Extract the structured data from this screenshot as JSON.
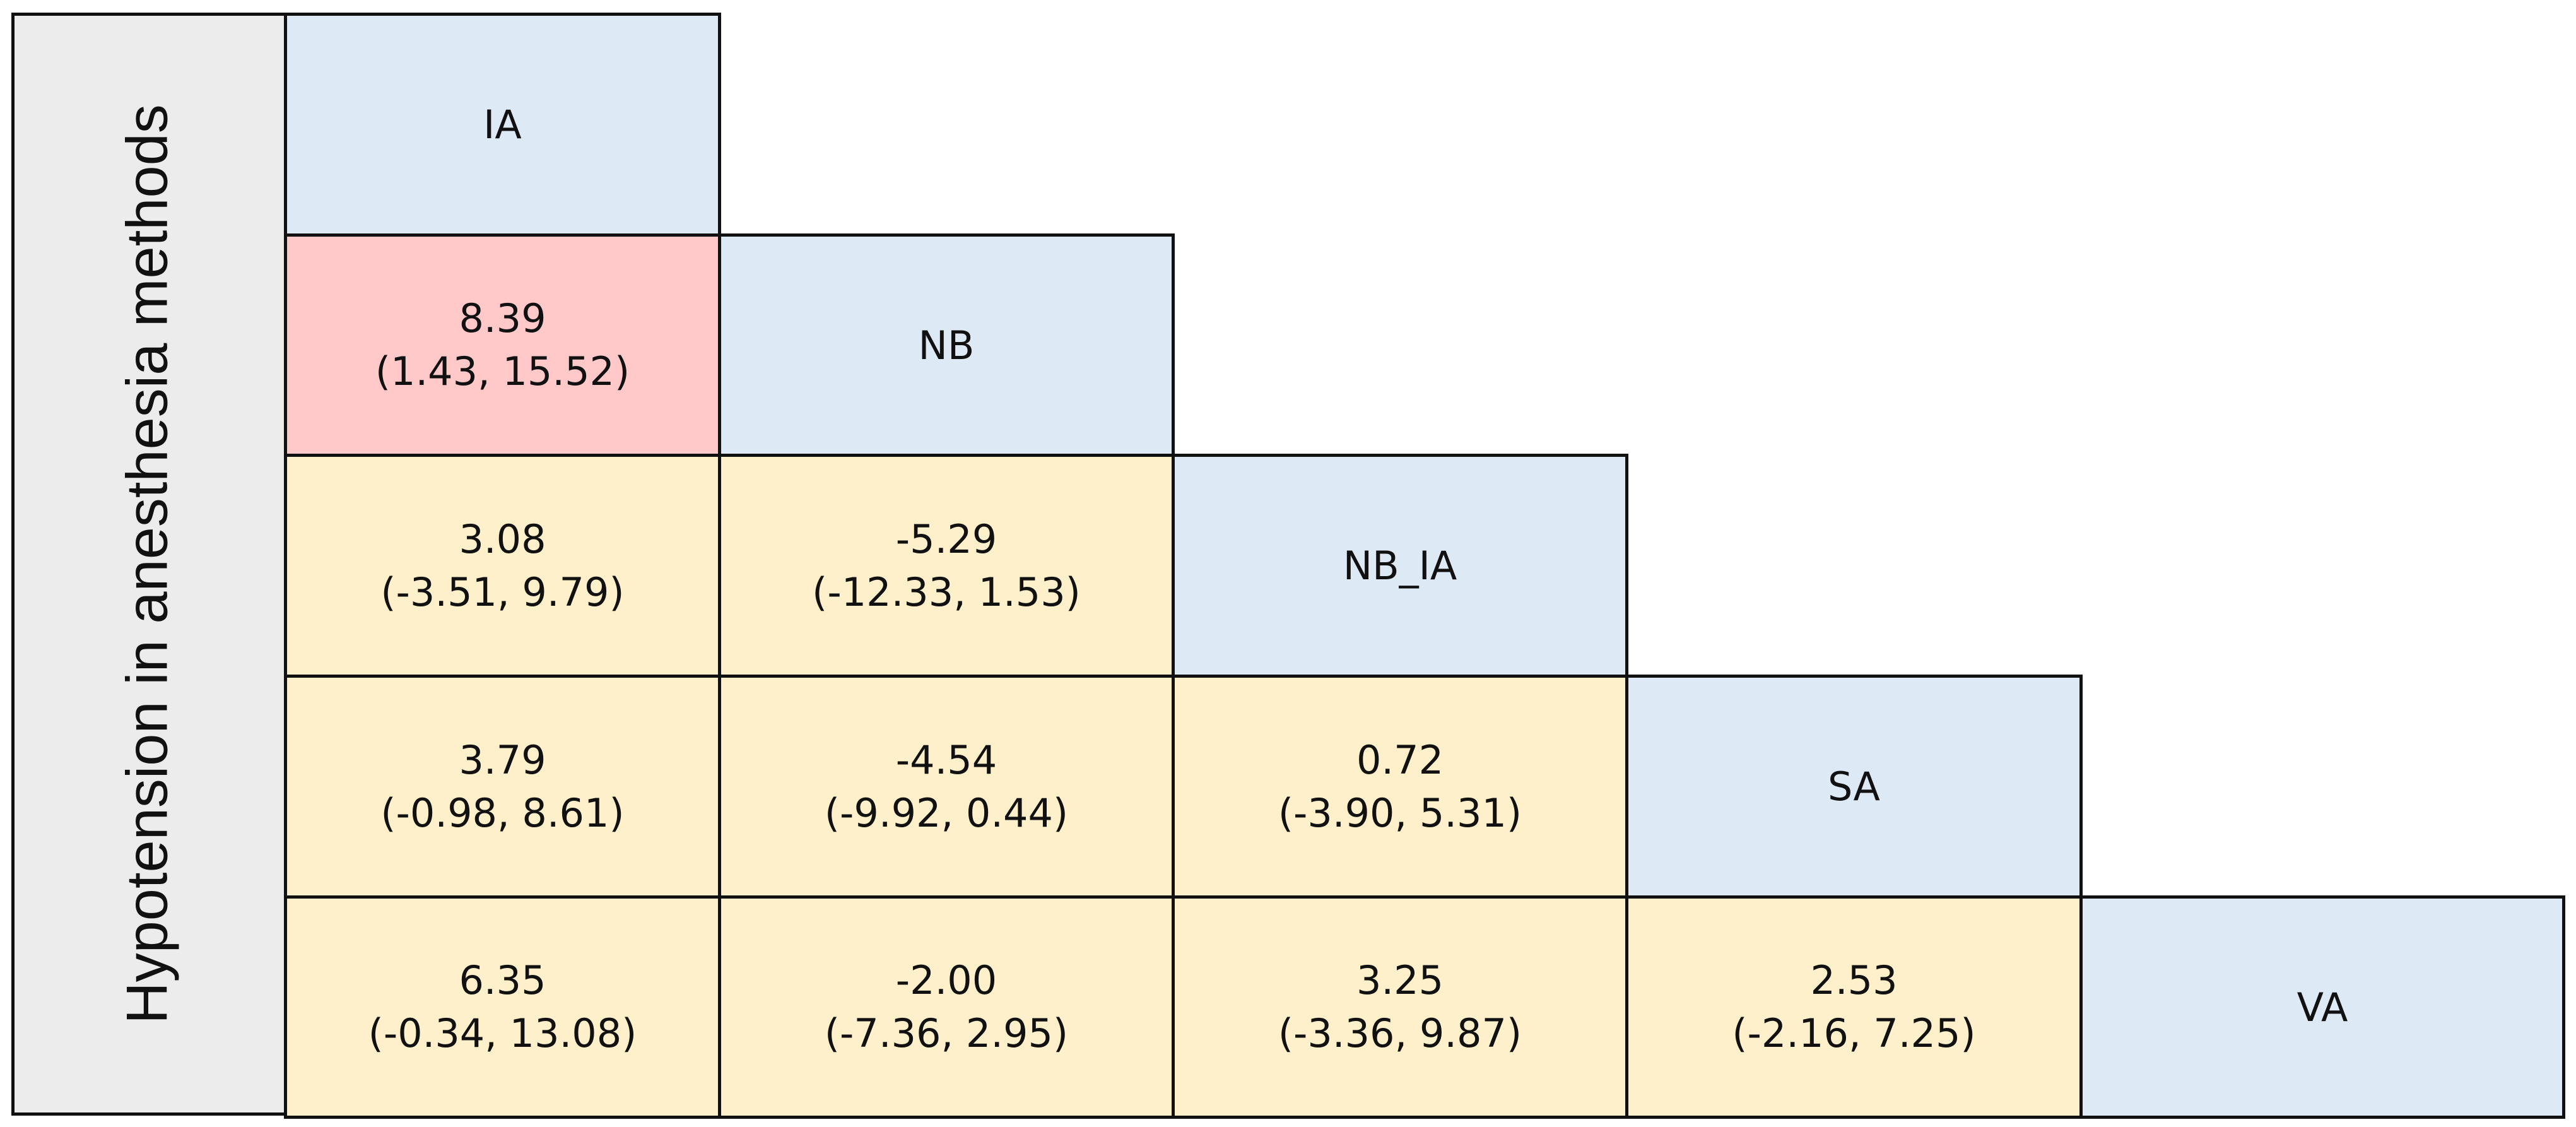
{
  "side_label": "Hypotension in anesthesia methods",
  "methods": [
    "IA",
    "NB",
    "NB_IA",
    "SA",
    "VA"
  ],
  "comparisons": [
    {
      "row": 1,
      "col": 0,
      "estimate": "8.39",
      "ci": "(1.43, 15.52)",
      "significant": true
    },
    {
      "row": 2,
      "col": 0,
      "estimate": "3.08",
      "ci": "(-3.51, 9.79)",
      "significant": false
    },
    {
      "row": 2,
      "col": 1,
      "estimate": "-5.29",
      "ci": "(-12.33, 1.53)",
      "significant": false
    },
    {
      "row": 3,
      "col": 0,
      "estimate": "3.79",
      "ci": "(-0.98, 8.61)",
      "significant": false
    },
    {
      "row": 3,
      "col": 1,
      "estimate": "-4.54",
      "ci": "(-9.92, 0.44)",
      "significant": false
    },
    {
      "row": 3,
      "col": 2,
      "estimate": "0.72",
      "ci": "(-3.90, 5.31)",
      "significant": false
    },
    {
      "row": 4,
      "col": 0,
      "estimate": "6.35",
      "ci": "(-0.34, 13.08)",
      "significant": false
    },
    {
      "row": 4,
      "col": 1,
      "estimate": "-2.00",
      "ci": "(-7.36, 2.95)",
      "significant": false
    },
    {
      "row": 4,
      "col": 2,
      "estimate": "3.25",
      "ci": "(-3.36, 9.87)",
      "significant": false
    },
    {
      "row": 4,
      "col": 3,
      "estimate": "2.53",
      "ci": "(-2.16, 7.25)",
      "significant": false
    }
  ],
  "colors": {
    "method_cell": "#dde9f5",
    "significant_cell": "#ffc9ca",
    "nonsignificant_cell": "#fff0cc",
    "side_panel": "#ececec",
    "border": "#111111"
  }
}
